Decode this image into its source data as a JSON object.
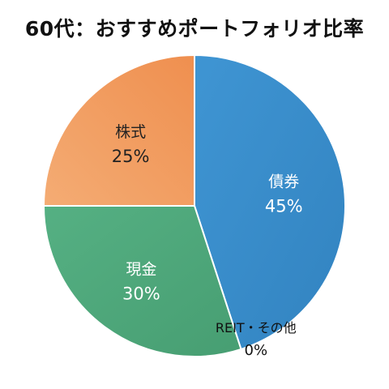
{
  "chart_data": {
    "type": "pie",
    "title": "60代：おすすめポートフォリオ比率",
    "slices": [
      {
        "label": "債券",
        "value": 45,
        "display": "45%",
        "color": "#3a8ac8",
        "text_color": "#ffffff"
      },
      {
        "label": "REIT・その他",
        "value": 0,
        "display": "0%",
        "color": "#3a8ac8",
        "text_color": "#111111"
      },
      {
        "label": "現金",
        "value": 30,
        "display": "30%",
        "color": "#4ea87a",
        "text_color": "#ffffff"
      },
      {
        "label": "株式",
        "value": 25,
        "display": "25%",
        "color": "#f19a5c",
        "text_color": "#222222"
      }
    ],
    "start_angle": "12 o'clock",
    "direction": "clockwise"
  }
}
